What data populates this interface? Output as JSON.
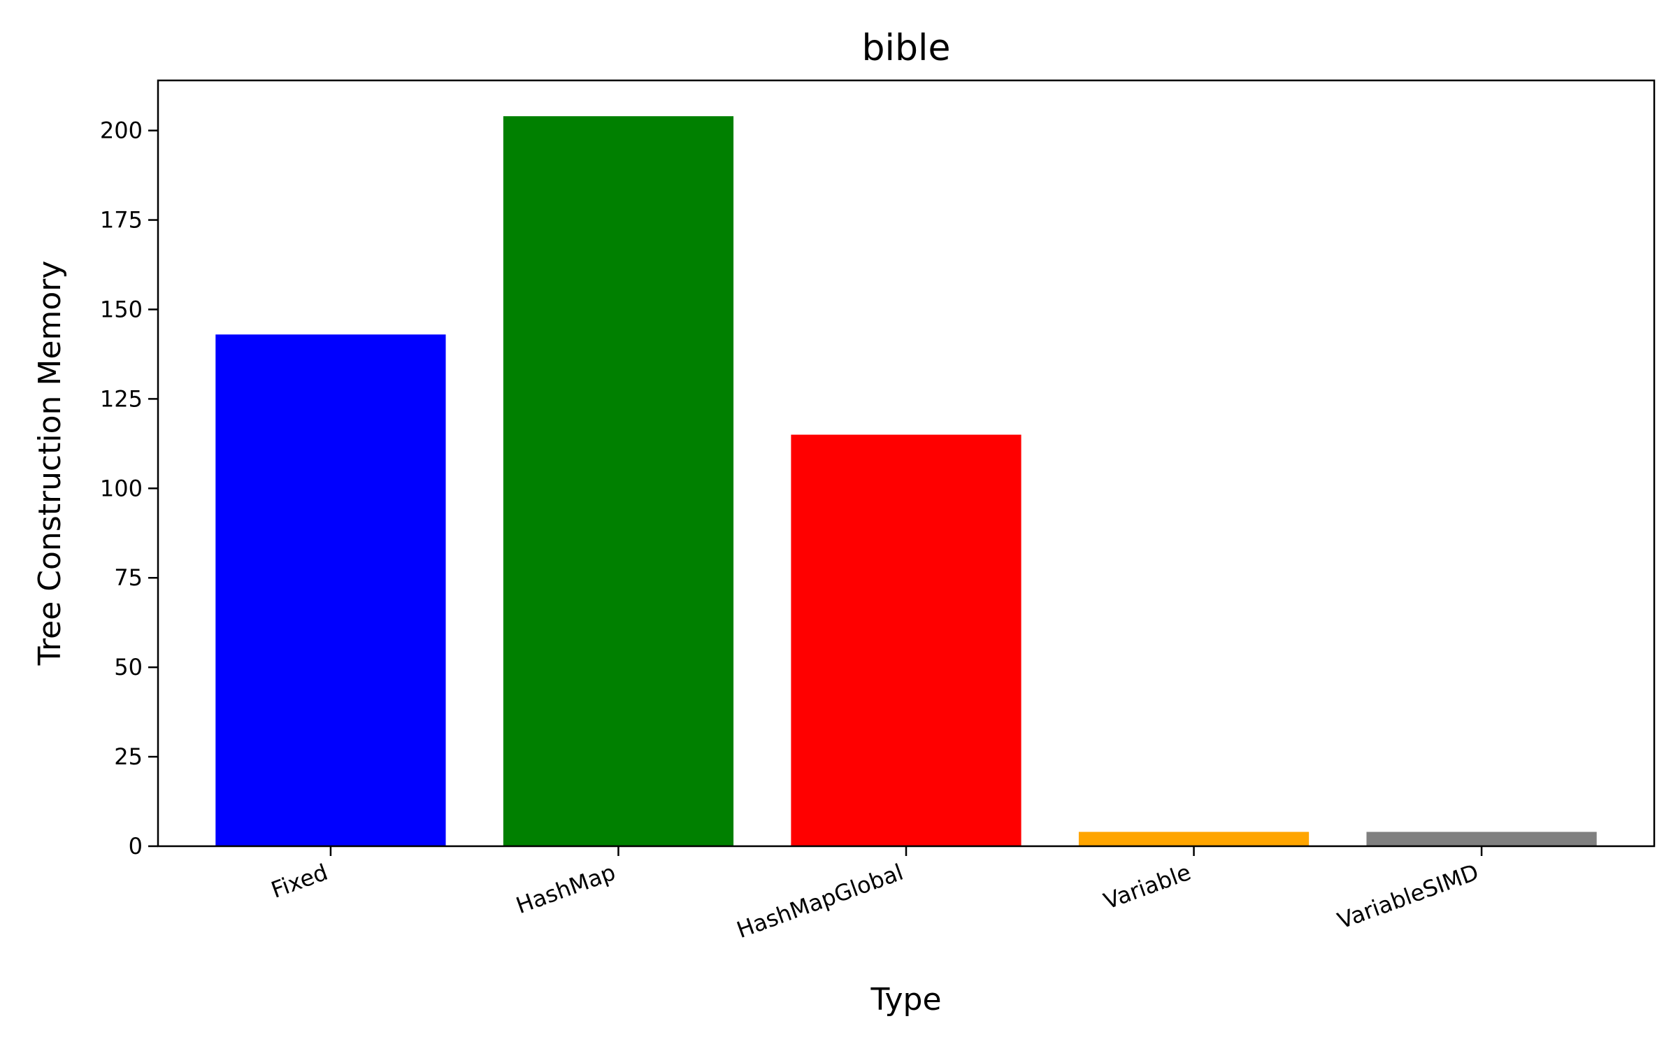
{
  "chart_data": {
    "type": "bar",
    "title": "bible",
    "xlabel": "Type",
    "ylabel": "Tree Construction Memory",
    "categories": [
      "Fixed",
      "HashMap",
      "HashMapGlobal",
      "Variable",
      "VariableSIMD"
    ],
    "values": [
      143,
      204,
      115,
      4,
      4
    ],
    "colors": [
      "#0000ff",
      "#008000",
      "#ff0000",
      "#ffa500",
      "#808080"
    ],
    "ylim": [
      0,
      214
    ],
    "yticks": [
      0,
      25,
      50,
      75,
      100,
      125,
      150,
      175,
      200
    ],
    "ytick_labels": [
      "0",
      "25",
      "50",
      "75",
      "100",
      "125",
      "150",
      "175",
      "200"
    ],
    "grid": false,
    "legend": "none"
  }
}
